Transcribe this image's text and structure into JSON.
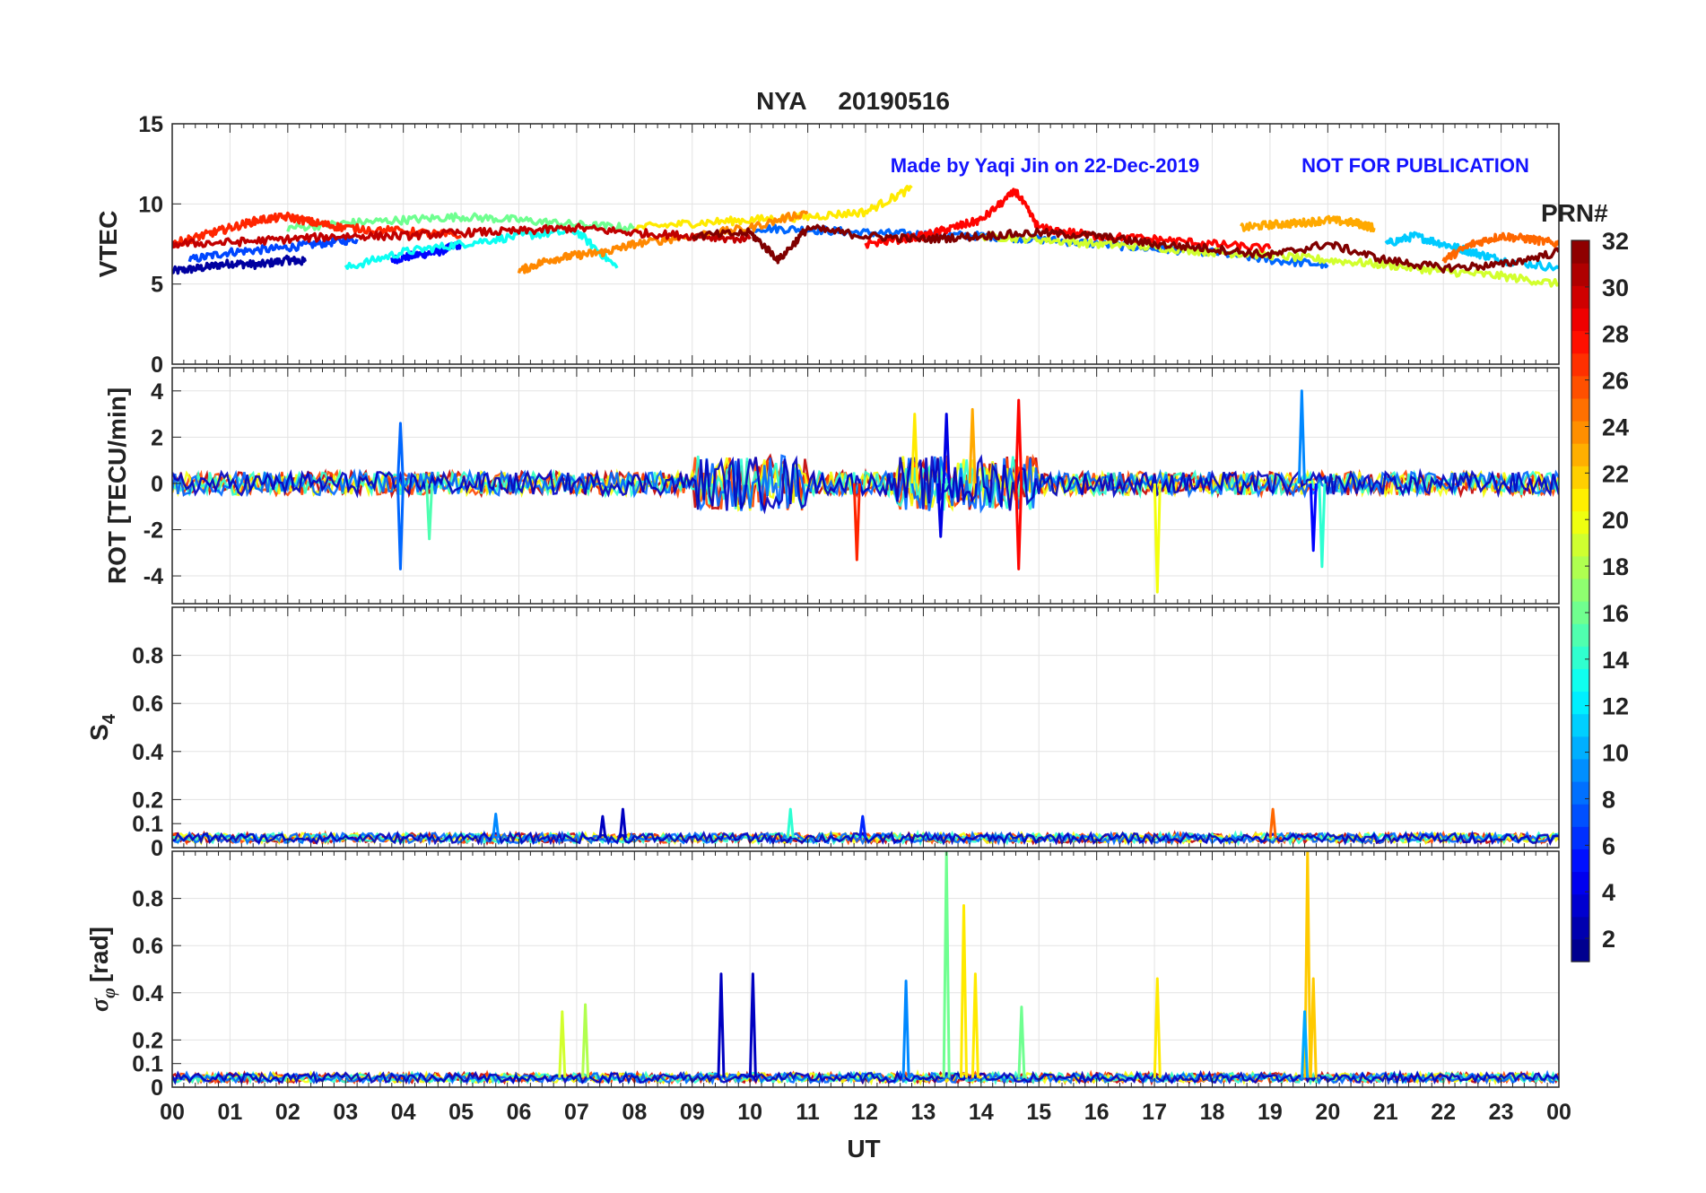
{
  "chart_data": {
    "type": "line",
    "title_station": "NYA",
    "title_date": "20190516",
    "title_color": "#ff1a1a",
    "watermark_left": "Made by Yaqi Jin on 22-Dec-2019",
    "watermark_right": "NOT FOR PUBLICATION",
    "watermark_color": "#1414ff",
    "xlabel": "UT",
    "xlim": [
      0,
      24
    ],
    "x_ticks": [
      "00",
      "01",
      "02",
      "03",
      "04",
      "05",
      "06",
      "07",
      "08",
      "09",
      "10",
      "11",
      "12",
      "13",
      "14",
      "15",
      "16",
      "17",
      "18",
      "19",
      "20",
      "21",
      "22",
      "23",
      "00"
    ],
    "colorbar": {
      "label": "PRN#",
      "colormap": "jet",
      "range": [
        1,
        32
      ],
      "ticks": [
        "2",
        "4",
        "6",
        "8",
        "10",
        "12",
        "14",
        "16",
        "18",
        "20",
        "22",
        "24",
        "26",
        "28",
        "30",
        "32"
      ]
    },
    "panels": [
      {
        "ylabel": "VTEC",
        "ylim": [
          0,
          15
        ],
        "yticks": [
          "0",
          "5",
          "10",
          "15"
        ],
        "grid": true,
        "series": [
          {
            "prn": 2,
            "x": [
              0,
              0.5,
              1,
              1.5,
              2,
              2.3
            ],
            "y": [
              5.8,
              6.0,
              6.3,
              6.2,
              6.5,
              6.4
            ]
          },
          {
            "prn": 5,
            "x": [
              3.8,
              4.2,
              4.6,
              5.0
            ],
            "y": [
              6.5,
              6.8,
              7.0,
              7.5
            ]
          },
          {
            "prn": 7,
            "x": [
              0.3,
              1.0,
              1.8,
              2.5,
              3.2
            ],
            "y": [
              6.5,
              7.0,
              7.2,
              7.5,
              7.8
            ]
          },
          {
            "prn": 8,
            "x": [
              10.0,
              11.0,
              12.0,
              13.0,
              14.0,
              15.0,
              16.0,
              17.0,
              18.0,
              19.0,
              20.0
            ],
            "y": [
              8.5,
              8.4,
              8.2,
              8.1,
              8.0,
              7.8,
              7.5,
              7.2,
              7.0,
              6.5,
              6.2
            ]
          },
          {
            "prn": 11,
            "x": [
              21.0,
              21.5,
              22.0,
              22.5,
              23.0,
              24.0
            ],
            "y": [
              7.5,
              8.0,
              7.5,
              7.0,
              6.5,
              6.0
            ]
          },
          {
            "prn": 13,
            "x": [
              3.0,
              4.0,
              5.0,
              6.0,
              7.0,
              7.7
            ],
            "y": [
              6.0,
              7.0,
              7.5,
              8.0,
              8.3,
              6.0
            ]
          },
          {
            "prn": 16,
            "x": [
              2.0,
              3.0,
              4.0,
              5.0,
              6.0,
              7.0,
              8.0
            ],
            "y": [
              8.5,
              8.8,
              9.0,
              9.2,
              9.0,
              8.7,
              8.5
            ]
          },
          {
            "prn": 19,
            "x": [
              14.0,
              15.0,
              16.0,
              17.0,
              18.0,
              19.0,
              20.0,
              21.0,
              22.0,
              23.0,
              24.0
            ],
            "y": [
              8.0,
              7.8,
              7.5,
              7.3,
              7.0,
              6.8,
              6.5,
              6.2,
              5.8,
              5.5,
              5.0
            ]
          },
          {
            "prn": 21,
            "x": [
              8.0,
              9.0,
              10.0,
              11.0,
              12.0,
              12.8
            ],
            "y": [
              8.5,
              8.8,
              9.0,
              9.2,
              9.5,
              11.0
            ]
          },
          {
            "prn": 23,
            "x": [
              18.5,
              19.0,
              19.5,
              20.0,
              20.5,
              20.8
            ],
            "y": [
              8.5,
              8.7,
              8.8,
              9.0,
              8.8,
              8.5
            ]
          },
          {
            "prn": 24,
            "x": [
              6.0,
              6.5,
              7.0,
              7.5,
              8.0,
              9.0,
              10.0,
              11.0
            ],
            "y": [
              5.8,
              6.5,
              6.8,
              7.0,
              7.5,
              8.0,
              8.5,
              9.5
            ]
          },
          {
            "prn": 25,
            "x": [
              22.0,
              22.5,
              23.0,
              23.5,
              24.0
            ],
            "y": [
              6.5,
              7.5,
              8.0,
              7.8,
              7.5
            ]
          },
          {
            "prn": 27,
            "x": [
              0.0,
              0.5,
              1.0,
              1.5,
              2.0,
              2.5,
              3.0,
              4.0,
              5.0
            ],
            "y": [
              7.5,
              8.0,
              8.5,
              9.0,
              9.2,
              8.8,
              8.5,
              8.3,
              8.0
            ]
          },
          {
            "prn": 28,
            "x": [
              12.0,
              13.0,
              13.5,
              14.0,
              14.6,
              15.0,
              16.0,
              17.0,
              18.0,
              19.0
            ],
            "y": [
              7.5,
              8.0,
              8.5,
              9.0,
              10.8,
              8.5,
              8.0,
              7.8,
              7.5,
              7.2
            ]
          },
          {
            "prn": 30,
            "x": [
              0.0,
              1.0,
              2.0,
              3.0,
              4.0,
              5.0,
              6.0,
              7.0,
              8.0,
              9.0,
              10.0
            ],
            "y": [
              7.5,
              7.6,
              7.8,
              8.0,
              8.0,
              8.2,
              8.3,
              8.5,
              8.2,
              8.0,
              7.8
            ]
          },
          {
            "prn": 32,
            "x": [
              9.0,
              10.0,
              10.5,
              11.0,
              12.0,
              13.0,
              14.0,
              15.0,
              16.0,
              17.0,
              18.0,
              19.0,
              20.0,
              21.0,
              22.0,
              23.0,
              24.0
            ],
            "y": [
              8.0,
              8.2,
              6.5,
              8.5,
              8.0,
              7.8,
              8.0,
              8.2,
              8.0,
              7.5,
              7.2,
              6.8,
              7.5,
              6.5,
              6.0,
              6.2,
              7.0
            ]
          }
        ]
      },
      {
        "ylabel": "ROT [TECU/min]",
        "ylim": [
          -5.2,
          5.0
        ],
        "yticks": [
          "-4",
          "-2",
          "0",
          "2",
          "4"
        ],
        "grid": true,
        "spikes": [
          {
            "prn": 8,
            "x": 3.95,
            "y": 2.6
          },
          {
            "prn": 8,
            "x": 3.95,
            "y": -3.7
          },
          {
            "prn": 15,
            "x": 4.45,
            "y": -2.4
          },
          {
            "prn": 27,
            "x": 11.85,
            "y": -3.3
          },
          {
            "prn": 21,
            "x": 12.85,
            "y": 3.0
          },
          {
            "prn": 4,
            "x": 13.4,
            "y": 3.0
          },
          {
            "prn": 4,
            "x": 13.3,
            "y": -2.3
          },
          {
            "prn": 23,
            "x": 13.85,
            "y": 3.2
          },
          {
            "prn": 28,
            "x": 14.65,
            "y": 3.6
          },
          {
            "prn": 28,
            "x": 14.65,
            "y": -3.7
          },
          {
            "prn": 20,
            "x": 17.05,
            "y": -4.7
          },
          {
            "prn": 9,
            "x": 19.55,
            "y": 4.0
          },
          {
            "prn": 5,
            "x": 19.75,
            "y": -2.9
          },
          {
            "prn": 14,
            "x": 19.9,
            "y": -3.6
          }
        ]
      },
      {
        "ylabel": "S4",
        "ylim": [
          0,
          1
        ],
        "yticks": [
          "0",
          "0.1",
          "0.2",
          "0.4",
          "0.6",
          "0.8"
        ],
        "grid": true,
        "spikes": [
          {
            "prn": 9,
            "x": 5.6,
            "y": 0.14
          },
          {
            "prn": 3,
            "x": 7.45,
            "y": 0.13
          },
          {
            "prn": 3,
            "x": 7.8,
            "y": 0.16
          },
          {
            "prn": 14,
            "x": 10.7,
            "y": 0.16
          },
          {
            "prn": 6,
            "x": 11.95,
            "y": 0.13
          },
          {
            "prn": 25,
            "x": 19.05,
            "y": 0.16
          }
        ]
      },
      {
        "ylabel": "σφ [rad]",
        "ylim": [
          0,
          1
        ],
        "yticks": [
          "0",
          "0.1",
          "0.2",
          "0.4",
          "0.6",
          "0.8"
        ],
        "grid": true,
        "spikes": [
          {
            "prn": 19,
            "x": 6.75,
            "y": 0.32
          },
          {
            "prn": 18,
            "x": 7.15,
            "y": 0.35
          },
          {
            "prn": 3,
            "x": 9.5,
            "y": 0.48
          },
          {
            "prn": 3,
            "x": 10.05,
            "y": 0.48
          },
          {
            "prn": 9,
            "x": 12.7,
            "y": 0.45
          },
          {
            "prn": 16,
            "x": 13.4,
            "y": 1.0
          },
          {
            "prn": 21,
            "x": 13.7,
            "y": 0.77
          },
          {
            "prn": 21,
            "x": 13.9,
            "y": 0.48
          },
          {
            "prn": 16,
            "x": 14.7,
            "y": 0.34
          },
          {
            "prn": 21,
            "x": 17.05,
            "y": 0.46
          },
          {
            "prn": 22,
            "x": 19.65,
            "y": 1.0
          },
          {
            "prn": 22,
            "x": 19.75,
            "y": 0.46
          },
          {
            "prn": 10,
            "x": 19.6,
            "y": 0.32
          }
        ]
      }
    ]
  }
}
